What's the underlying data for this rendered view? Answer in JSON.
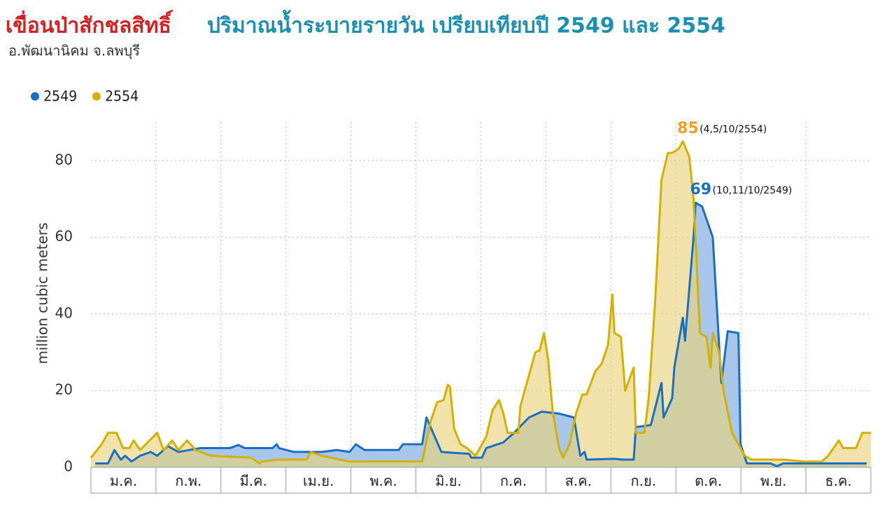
{
  "chart_data": {
    "type": "area",
    "title_highlight": "เขื่อนป่าสักชลสิทธิ์",
    "title": "ปริมาณน้ำระบายรายวัน เปรียบเทียบปี 2549 และ 2554",
    "subtitle": "อ.พัฒนานิคม จ.ลพบุรี",
    "y_label": "million cubic meters",
    "categories": [
      "ม.ค.",
      "ก.พ.",
      "มี.ค.",
      "เม.ย.",
      "พ.ค.",
      "มิ.ย.",
      "ก.ค.",
      "ส.ค.",
      "ก.ย.",
      "ต.ค.",
      "พ.ย.",
      "ธ.ค."
    ],
    "xlim": [
      0,
      365
    ],
    "ylim": [
      0,
      90
    ],
    "yticks": [
      0,
      20,
      40,
      60,
      80
    ],
    "grid": true,
    "legend": "top-left",
    "series": [
      {
        "name": "2549",
        "color": "#1a6fc0",
        "fill": "#a7c6e9",
        "x": [
          2,
          8,
          11,
          14,
          16,
          19,
          23,
          28,
          31,
          36,
          41,
          51,
          65,
          69,
          72,
          85,
          87,
          88,
          95,
          108,
          115,
          121,
          124,
          128,
          144,
          146,
          155,
          157,
          164,
          177,
          178,
          183,
          185,
          193,
          198,
          205,
          211,
          219,
          226,
          229,
          231,
          232,
          245,
          249,
          254,
          255,
          262,
          267,
          268,
          272,
          273,
          277,
          278,
          282,
          283,
          286,
          291,
          295,
          298,
          303,
          304,
          307,
          318,
          321,
          324,
          337,
          342,
          363
        ],
        "values": [
          1,
          1,
          4.5,
          2,
          3,
          1.5,
          3,
          4,
          3,
          5.5,
          4,
          5,
          5,
          5.8,
          5,
          5,
          6,
          5,
          4,
          4,
          4.5,
          4,
          6,
          4.5,
          4.5,
          6,
          6,
          13,
          4,
          3.5,
          2.5,
          2.5,
          5,
          6.5,
          9,
          13,
          14.5,
          14,
          13,
          3,
          4,
          2,
          2.2,
          2,
          2,
          10.5,
          11,
          22,
          13,
          18,
          26,
          39,
          33,
          60,
          69,
          68,
          60,
          22,
          35.5,
          35,
          6,
          1,
          1,
          0.3,
          1,
          1,
          1,
          1
        ]
      },
      {
        "name": "2554",
        "color": "#d4b100",
        "fill": "#e8d37c",
        "x": [
          0,
          5,
          8,
          12,
          15,
          18,
          20,
          23,
          31,
          34,
          38,
          41,
          45,
          49,
          56,
          75,
          79,
          80,
          88,
          101,
          103,
          108,
          121,
          134,
          155,
          159,
          162,
          165,
          167,
          168,
          170,
          173,
          176,
          180,
          185,
          188,
          191,
          193,
          195,
          200,
          201,
          205,
          208,
          210,
          212,
          214,
          216,
          219,
          221,
          224,
          227,
          230,
          232,
          236,
          239,
          242,
          244,
          245,
          248,
          250,
          254,
          255,
          259,
          261,
          264,
          267,
          270,
          272,
          275,
          277,
          280,
          282,
          285,
          288,
          290,
          291,
          294,
          296,
          300,
          303,
          306,
          309,
          324,
          334,
          342,
          345,
          350,
          352,
          358,
          361,
          365
        ],
        "values": [
          2.5,
          6,
          9,
          9,
          5,
          5,
          7,
          4.5,
          9,
          4.5,
          7,
          4.5,
          7,
          4.5,
          3,
          2.5,
          1,
          1.5,
          2,
          2,
          4,
          3,
          1.5,
          1.5,
          1.5,
          12,
          17,
          17.5,
          21.5,
          21,
          10,
          6,
          5,
          3,
          8,
          15,
          17.5,
          14,
          9,
          9,
          16,
          24,
          30,
          30.5,
          35,
          28,
          15,
          5,
          2.5,
          6,
          14,
          19,
          19,
          25,
          27,
          32,
          45,
          35,
          34,
          20,
          26,
          9,
          9,
          18,
          43,
          75,
          82,
          82,
          83,
          85,
          81,
          70,
          35,
          34,
          26,
          35,
          30,
          20,
          9,
          6,
          3,
          2,
          2,
          1.5,
          1.5,
          3,
          7,
          5,
          5,
          9,
          9
        ]
      }
    ],
    "annotations": [
      {
        "label": "85",
        "date": "(4,5/10/2554)",
        "color": "#f0a020"
      },
      {
        "label": "69",
        "date": "(10,11/10/2549)",
        "color": "#1a6fc0"
      }
    ]
  }
}
